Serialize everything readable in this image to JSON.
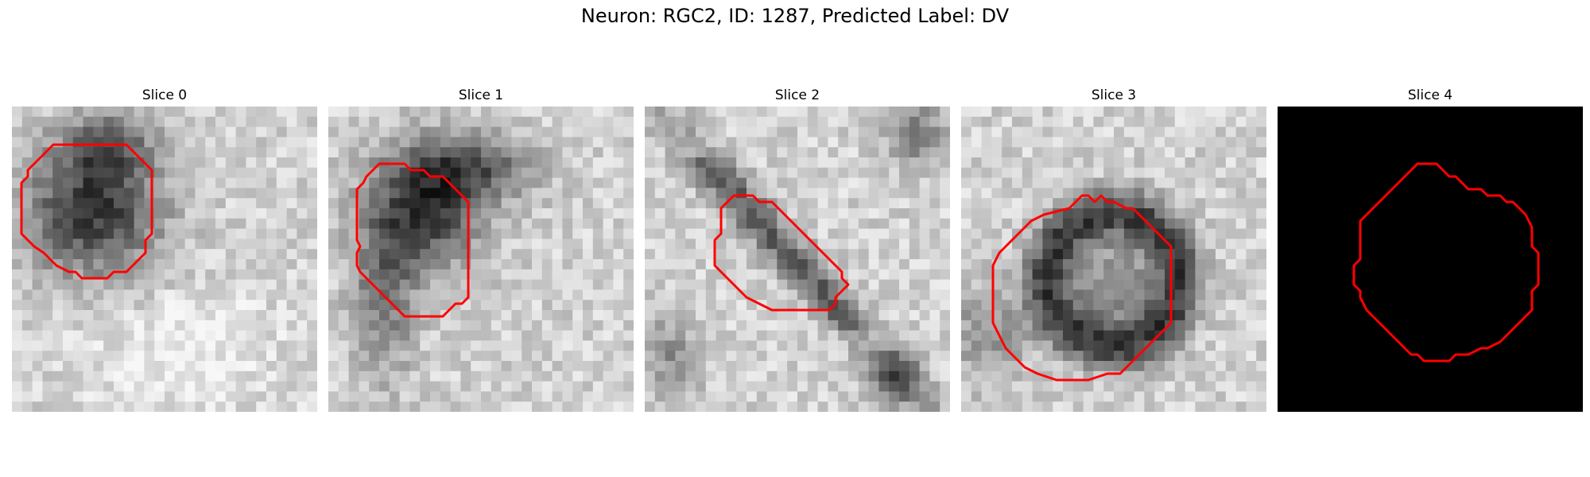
{
  "figure": {
    "suptitle": "Neuron: RGC2, ID: 1287, Predicted Label: DV",
    "contour_color": "#ff0000"
  },
  "panels": [
    {
      "title": "Slice 0",
      "style": "blob"
    },
    {
      "title": "Slice 1",
      "style": "blob"
    },
    {
      "title": "Slice 2",
      "style": "streak"
    },
    {
      "title": "Slice 3",
      "style": "ring"
    },
    {
      "title": "Slice 4",
      "style": "black"
    }
  ]
}
